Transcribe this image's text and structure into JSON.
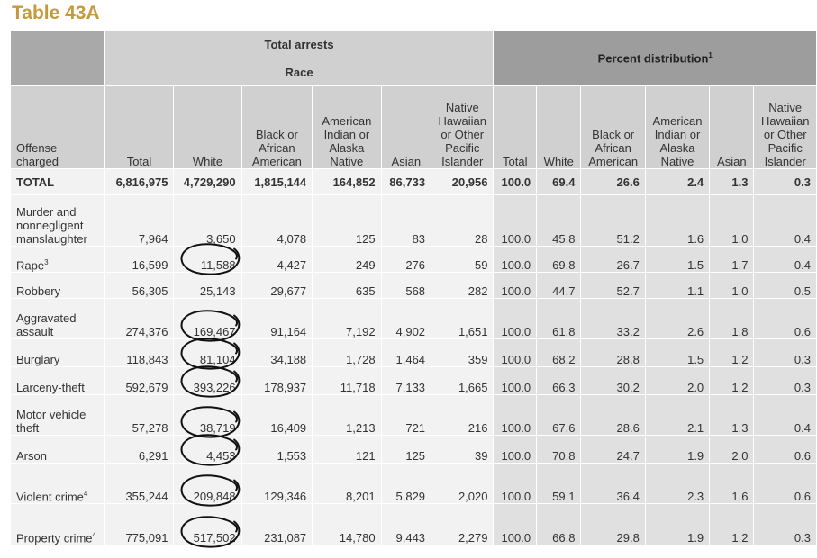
{
  "title": "Table 43A",
  "headers": {
    "total_arrests": "Total arrests",
    "race": "Race",
    "percent_distribution": "Percent distribution",
    "percent_note": "1",
    "offense_charged": "Offense charged",
    "columns": [
      "Total",
      "White",
      "Black or African American",
      "American Indian or Alaska Native",
      "Asian",
      "Native Hawaiian or Other Pacific Islander"
    ]
  },
  "rows": [
    {
      "label": "TOTAL",
      "note": "",
      "indent": false,
      "bold": true,
      "counts": [
        "6,816,975",
        "4,729,290",
        "1,815,144",
        "164,852",
        "86,733",
        "20,956"
      ],
      "percents": [
        "100.0",
        "69.4",
        "26.6",
        "2.4",
        "1.3",
        "0.3"
      ]
    },
    {
      "label": "Murder and nonnegligent manslaughter",
      "note": "",
      "indent": false,
      "bold": false,
      "counts": [
        "7,964",
        "3,650",
        "4,078",
        "125",
        "83",
        "28"
      ],
      "percents": [
        "100.0",
        "45.8",
        "51.2",
        "1.6",
        "1.0",
        "0.4"
      ]
    },
    {
      "label": "Rape",
      "note": "3",
      "indent": false,
      "bold": false,
      "counts": [
        "16,599",
        "11,588",
        "4,427",
        "249",
        "276",
        "59"
      ],
      "percents": [
        "100.0",
        "69.8",
        "26.7",
        "1.5",
        "1.7",
        "0.4"
      ]
    },
    {
      "label": "Robbery",
      "note": "",
      "indent": false,
      "bold": false,
      "counts": [
        "56,305",
        "25,143",
        "29,677",
        "635",
        "568",
        "282"
      ],
      "percents": [
        "100.0",
        "44.7",
        "52.7",
        "1.1",
        "1.0",
        "0.5"
      ]
    },
    {
      "label": "Aggravated assault",
      "note": "",
      "indent": false,
      "bold": false,
      "counts": [
        "274,376",
        "169,467",
        "91,164",
        "7,192",
        "4,902",
        "1,651"
      ],
      "percents": [
        "100.0",
        "61.8",
        "33.2",
        "2.6",
        "1.8",
        "0.6"
      ]
    },
    {
      "label": "Burglary",
      "note": "",
      "indent": false,
      "bold": false,
      "counts": [
        "118,843",
        "81,104",
        "34,188",
        "1,728",
        "1,464",
        "359"
      ],
      "percents": [
        "100.0",
        "68.2",
        "28.8",
        "1.5",
        "1.2",
        "0.3"
      ]
    },
    {
      "label": "Larceny-theft",
      "note": "",
      "indent": false,
      "bold": false,
      "counts": [
        "592,679",
        "393,226",
        "178,937",
        "11,718",
        "7,133",
        "1,665"
      ],
      "percents": [
        "100.0",
        "66.3",
        "30.2",
        "2.0",
        "1.2",
        "0.3"
      ]
    },
    {
      "label": "Motor vehicle theft",
      "note": "",
      "indent": false,
      "bold": false,
      "counts": [
        "57,278",
        "38,719",
        "16,409",
        "1,213",
        "721",
        "216"
      ],
      "percents": [
        "100.0",
        "67.6",
        "28.6",
        "2.1",
        "1.3",
        "0.4"
      ]
    },
    {
      "label": "Arson",
      "note": "",
      "indent": false,
      "bold": false,
      "counts": [
        "6,291",
        "4,453",
        "1,553",
        "121",
        "125",
        "39"
      ],
      "percents": [
        "100.0",
        "70.8",
        "24.7",
        "1.9",
        "2.0",
        "0.6"
      ]
    },
    {
      "label": "Violent crime",
      "note": "4",
      "indent": true,
      "bold": false,
      "counts": [
        "355,244",
        "209,848",
        "129,346",
        "8,201",
        "5,829",
        "2,020"
      ],
      "percents": [
        "100.0",
        "59.1",
        "36.4",
        "2.3",
        "1.6",
        "0.6"
      ]
    },
    {
      "label": "Property crime",
      "note": "4",
      "indent": true,
      "bold": false,
      "counts": [
        "775,091",
        "517,502",
        "231,087",
        "14,780",
        "9,443",
        "2,279"
      ],
      "percents": [
        "100.0",
        "66.8",
        "29.8",
        "1.9",
        "1.2",
        "0.3"
      ]
    }
  ],
  "annotation": {
    "color": "#111111",
    "circled_column": "White",
    "circled_rows": [
      2,
      4,
      5,
      6,
      7,
      8,
      9,
      10
    ]
  }
}
